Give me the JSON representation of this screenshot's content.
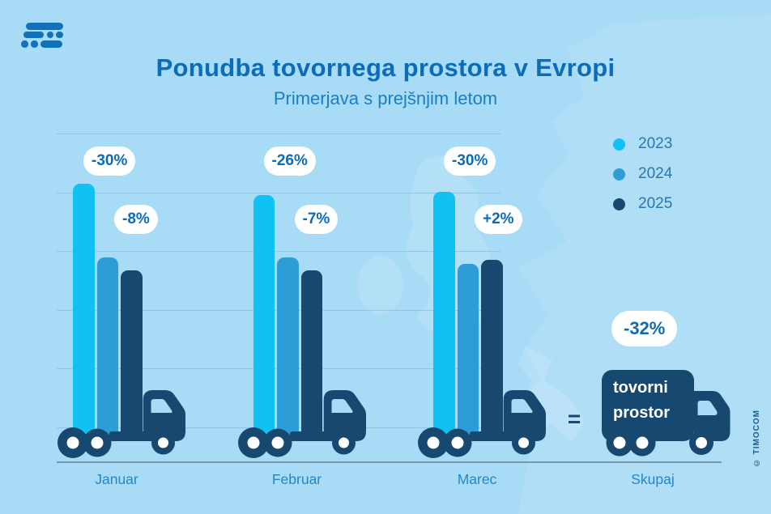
{
  "page": {
    "title": "Ponudba tovornega prostora v Evropi",
    "subtitle": "Primerjava s prejšnjim letom"
  },
  "legend": {
    "items": [
      {
        "label": "2023",
        "color": "#0FC2F3"
      },
      {
        "label": "2024",
        "color": "#2E9CD7"
      },
      {
        "label": "2025",
        "color": "#17486F"
      }
    ]
  },
  "chart_data": {
    "type": "bar",
    "title": "Ponudba tovornega prostora v Evropi",
    "subtitle": "Primerjava s prejšnjim letom",
    "categories": [
      "Januar",
      "Februar",
      "Marec"
    ],
    "series": [
      {
        "name": "2023",
        "color": "#0FC2F3",
        "values": [
          100,
          95.5,
          97
        ],
        "changes": [
          null,
          null,
          null
        ]
      },
      {
        "name": "2024",
        "color": "#2E9CD7",
        "values": [
          71.5,
          71.5,
          69
        ],
        "changes": [
          "-30%",
          "-26%",
          "-30%"
        ]
      },
      {
        "name": "2025",
        "color": "#17486F",
        "values": [
          66.5,
          66.5,
          70.5
        ],
        "changes": [
          "-8%",
          "-7%",
          "+2%"
        ]
      }
    ],
    "value_unit": "relative freight-space index (no numeric axis shown; Januar 2023 = 100)",
    "total": {
      "label": "Skupaj",
      "change": "-32%",
      "equals": "=",
      "truck_text": [
        "tovorni",
        "prostor"
      ]
    },
    "grid": true,
    "legend_position": "top-right"
  },
  "footer": {
    "copyright": "© TIMOCOM"
  },
  "colors": {
    "background": "#A8DBF6",
    "map": "#FFFFFF",
    "bar_2023": "#0FC2F3",
    "bar_2024": "#2E9CD7",
    "bar_2025": "#17486F",
    "truck_body": "#17486F",
    "wheel_hub": "#FFFFFF",
    "windshield": "#A8DBF6",
    "title_text": "#0C6CB8",
    "subtitle_text": "#1A7FC4",
    "pill_text": "#0B6BB7",
    "gridline": "#92C5E5",
    "baseline": "#6F8396",
    "legend_text": "#2B77AD",
    "copyright_text": "#1B5E8C"
  }
}
